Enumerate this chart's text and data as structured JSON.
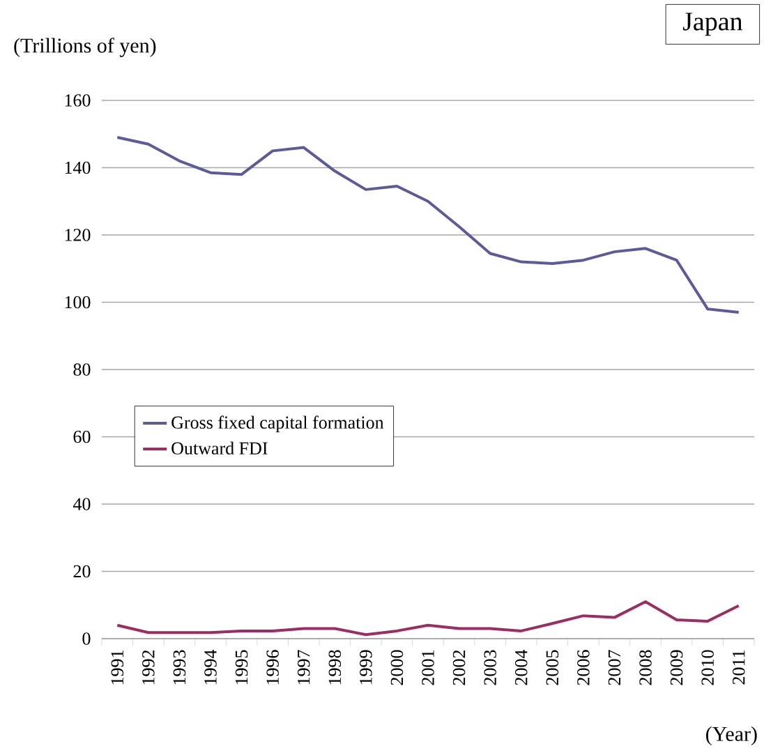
{
  "chart_data": {
    "type": "line",
    "title": "Japan",
    "ylabel": "(Trillions of yen)",
    "xlabel": "(Year)",
    "categories": [
      "1991",
      "1992",
      "1993",
      "1994",
      "1995",
      "1996",
      "1997",
      "1998",
      "1999",
      "2000",
      "2001",
      "2002",
      "2003",
      "2004",
      "2005",
      "2006",
      "2007",
      "2008",
      "2009",
      "2010",
      "2011"
    ],
    "series": [
      {
        "name": "Gross fixed capital formation",
        "color": "#5b5b9b",
        "values": [
          149,
          147,
          142,
          138.5,
          138,
          145,
          146,
          139,
          133.5,
          134.5,
          130,
          122.5,
          114.5,
          112,
          111.5,
          112.5,
          115,
          116,
          112.5,
          98,
          97
        ]
      },
      {
        "name": "Outward FDI",
        "color": "#9b2d62",
        "values": [
          4,
          1.8,
          1.8,
          1.8,
          2.3,
          2.3,
          3,
          3,
          1.2,
          2.3,
          4,
          3,
          3,
          2.3,
          4.5,
          6.8,
          6.3,
          11,
          5.6,
          5.2,
          9.8
        ]
      }
    ],
    "ylim": [
      0,
      160
    ],
    "yticks": [
      0,
      20,
      40,
      60,
      80,
      100,
      120,
      140,
      160
    ],
    "grid": "y",
    "legend": "left",
    "marker": "none",
    "line_style": "solid"
  }
}
